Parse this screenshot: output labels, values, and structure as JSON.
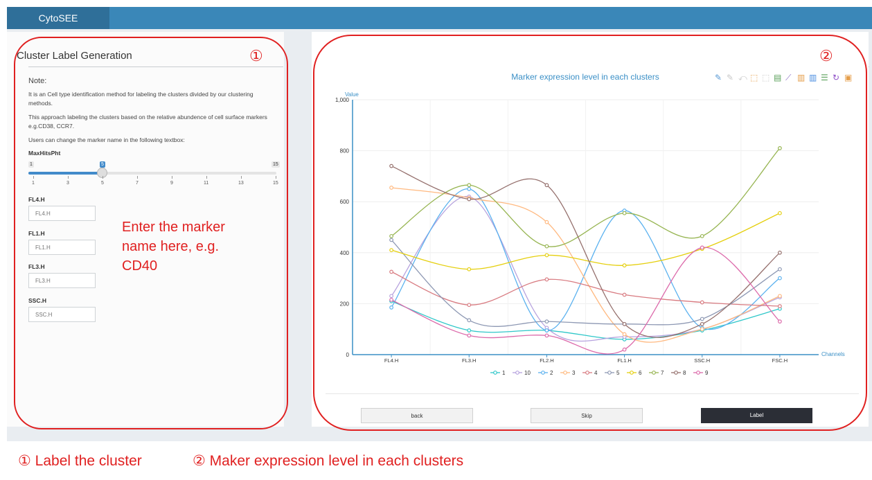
{
  "app": {
    "brand": "CytoSEE"
  },
  "left": {
    "title": "Cluster Label Generation",
    "note_heading": "Note:",
    "paragraphs": [
      "It is an Cell type identification method for labeling the clusters divided by our clustering methods.",
      "This approach labeling the clusters based on the relative abundence of cell surface markers e.g.CD38, CCR7.",
      "Users can change the marker name in the following textbox:"
    ],
    "slider": {
      "label": "MaxHitsPht",
      "min": 1,
      "max": 15,
      "value": 5,
      "min_label": "1",
      "max_label": "15",
      "value_label": "5",
      "ticks": [
        "1",
        "3",
        "5",
        "7",
        "9",
        "11",
        "13",
        "15"
      ]
    },
    "fields": [
      {
        "label": "FL4.H",
        "placeholder": "FL4.H"
      },
      {
        "label": "FL1.H",
        "placeholder": "FL1.H"
      },
      {
        "label": "FL3.H",
        "placeholder": "FL3.H"
      },
      {
        "label": "SSC.H",
        "placeholder": "SSC.H"
      }
    ]
  },
  "annotation": {
    "marker_hint": [
      "Enter the marker",
      "name here, e.g.",
      "CD40"
    ]
  },
  "markers": {
    "m1": "①",
    "m2": "②"
  },
  "chart_toolbar": [
    "pencil-icon",
    "eraser-icon",
    "zoom-reset-icon",
    "rect-select-icon",
    "lasso-icon",
    "data-view-icon",
    "line-chart-icon",
    "bar-chart-icon",
    "stack-icon",
    "tiled-icon",
    "restore-icon",
    "save-image-icon"
  ],
  "buttons": {
    "back": "back",
    "skip": "Skip",
    "label": "Label"
  },
  "footer": {
    "item1": "① Label the cluster",
    "item2": "② Maker expression level in each clusters"
  },
  "chart_data": {
    "type": "line",
    "title": "Marker expression level in each clusters",
    "ylabel": "Value",
    "xlabel": "Channels",
    "categories": [
      "FL4.H",
      "FL3.H",
      "FL2.H",
      "FL1.H",
      "SSC.H",
      "FSC.H"
    ],
    "ylim": [
      0,
      1000
    ],
    "yticks": [
      "0",
      "200",
      "400",
      "600",
      "800",
      "1,000"
    ],
    "grid": true,
    "legend_position": "bottom",
    "series": [
      {
        "name": "1",
        "color": "#2ec7c9",
        "values": [
          210,
          95,
          95,
          60,
          95,
          180
        ]
      },
      {
        "name": "10",
        "color": "#b6a2de",
        "values": [
          230,
          620,
          105,
          70,
          100,
          225
        ]
      },
      {
        "name": "2",
        "color": "#5ab1ef",
        "values": [
          185,
          650,
          95,
          565,
          105,
          300
        ]
      },
      {
        "name": "3",
        "color": "#ffb980",
        "values": [
          655,
          615,
          520,
          80,
          100,
          230
        ]
      },
      {
        "name": "4",
        "color": "#d87a80",
        "values": [
          325,
          195,
          295,
          235,
          205,
          190
        ]
      },
      {
        "name": "5",
        "color": "#8d98b3",
        "values": [
          450,
          135,
          130,
          120,
          140,
          335
        ]
      },
      {
        "name": "6",
        "color": "#e5cf0d",
        "values": [
          410,
          335,
          390,
          350,
          415,
          555
        ]
      },
      {
        "name": "7",
        "color": "#97b552",
        "values": [
          465,
          665,
          425,
          555,
          465,
          810
        ]
      },
      {
        "name": "8",
        "color": "#95706d",
        "values": [
          740,
          610,
          665,
          120,
          120,
          400
        ]
      },
      {
        "name": "9",
        "color": "#dc69aa",
        "values": [
          215,
          75,
          75,
          20,
          420,
          130
        ]
      }
    ]
  }
}
